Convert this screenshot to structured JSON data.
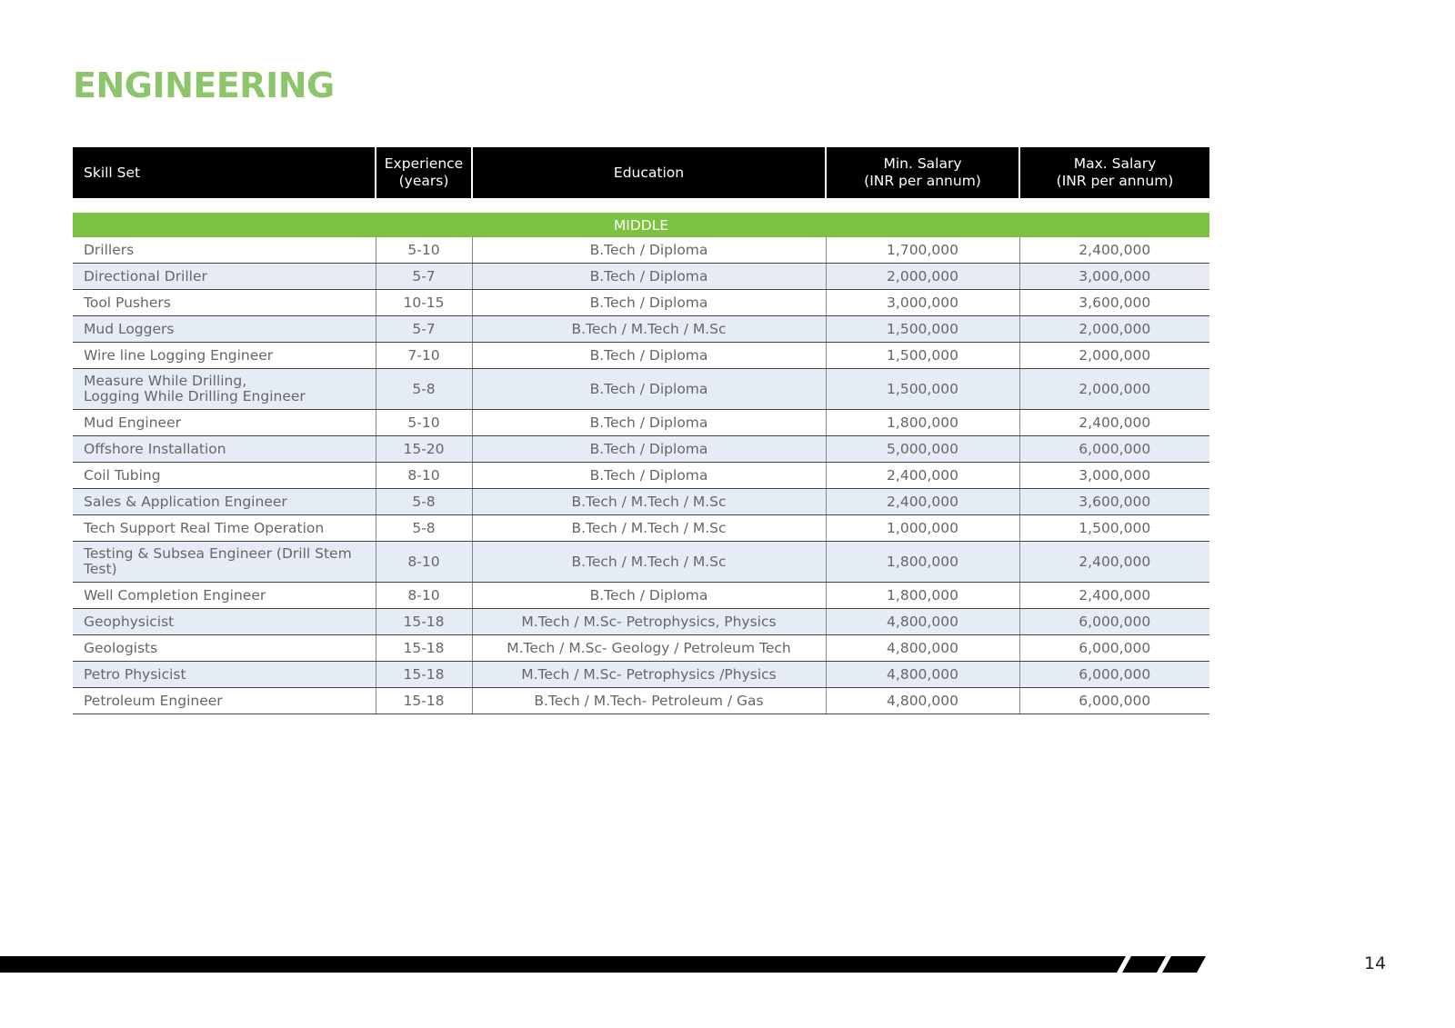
{
  "title": "ENGINEERING",
  "table": {
    "headers": [
      "Skill Set",
      "Experience\n(years)",
      "Education",
      "Min. Salary\n(INR per annum)",
      "Max. Salary\n(INR per annum)"
    ],
    "section": "MIDDLE",
    "rows": [
      [
        "Drillers",
        "5-10",
        "B.Tech / Diploma",
        "1,700,000",
        "2,400,000"
      ],
      [
        "Directional Driller",
        "5-7",
        "B.Tech / Diploma",
        "2,000,000",
        "3,000,000"
      ],
      [
        "Tool Pushers",
        "10-15",
        "B.Tech / Diploma",
        "3,000,000",
        "3,600,000"
      ],
      [
        "Mud Loggers",
        "5-7",
        "B.Tech / M.Tech / M.Sc",
        "1,500,000",
        "2,000,000"
      ],
      [
        "Wire line Logging Engineer",
        "7-10",
        "B.Tech / Diploma",
        "1,500,000",
        "2,000,000"
      ],
      [
        "Measure While Drilling,\nLogging While Drilling Engineer",
        "5-8",
        "B.Tech / Diploma",
        "1,500,000",
        "2,000,000"
      ],
      [
        "Mud Engineer",
        "5-10",
        "B.Tech / Diploma",
        "1,800,000",
        "2,400,000"
      ],
      [
        "Offshore Installation",
        "15-20",
        "B.Tech / Diploma",
        "5,000,000",
        "6,000,000"
      ],
      [
        "Coil Tubing",
        "8-10",
        "B.Tech / Diploma",
        "2,400,000",
        "3,000,000"
      ],
      [
        "Sales & Application Engineer",
        "5-8",
        "B.Tech / M.Tech / M.Sc",
        "2,400,000",
        "3,600,000"
      ],
      [
        "Tech Support Real Time Operation",
        "5-8",
        "B.Tech / M.Tech / M.Sc",
        "1,000,000",
        "1,500,000"
      ],
      [
        "Testing & Subsea Engineer (Drill Stem\nTest)",
        "8-10",
        "B.Tech / M.Tech / M.Sc",
        "1,800,000",
        "2,400,000"
      ],
      [
        "Well Completion Engineer",
        "8-10",
        "B.Tech / Diploma",
        "1,800,000",
        "2,400,000"
      ],
      [
        "Geophysicist",
        "15-18",
        "M.Tech / M.Sc- Petrophysics, Physics",
        "4,800,000",
        "6,000,000"
      ],
      [
        "Geologists",
        "15-18",
        "M.Tech / M.Sc- Geology / Petroleum Tech",
        "4,800,000",
        "6,000,000"
      ],
      [
        "Petro Physicist",
        "15-18",
        "M.Tech / M.Sc- Petrophysics /Physics",
        "4,800,000",
        "6,000,000"
      ],
      [
        "Petroleum Engineer",
        "15-18",
        "B.Tech / M.Tech- Petroleum / Gas",
        "4,800,000",
        "6,000,000"
      ]
    ]
  },
  "page_number": "14"
}
